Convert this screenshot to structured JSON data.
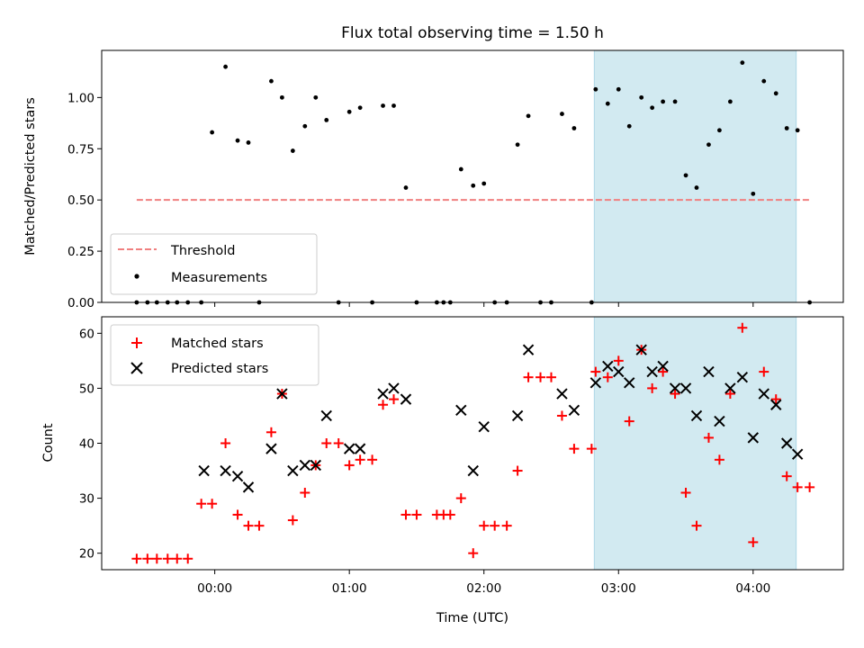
{
  "chart_data": [
    {
      "type": "scatter",
      "panel": "top",
      "title": "Flux total observing time = 1.50 h",
      "ylabel": "Matched/Predicted stars",
      "ylim": [
        0,
        1.23
      ],
      "xlim_hours": [
        -0.84,
        4.67
      ],
      "yticks": [
        0,
        0.25,
        0.5,
        0.75,
        1.0
      ],
      "ytick_labels": [
        "0.00",
        "0.25",
        "0.50",
        "0.75",
        "1.00"
      ],
      "shaded_span_hours": [
        2.82,
        4.32
      ],
      "shade_color": "#add8e6",
      "threshold": {
        "name": "Threshold",
        "y": 0.5,
        "x_range_hours": [
          -0.58,
          4.42
        ],
        "color": "#f08080"
      },
      "legend": {
        "placement": "lower-left",
        "entries": [
          "Threshold",
          "Measurements"
        ]
      },
      "series": [
        {
          "name": "Measurements",
          "marker": "dot",
          "color": "#000000",
          "x_hours": [
            -0.58,
            -0.5,
            -0.43,
            -0.35,
            -0.28,
            -0.2,
            -0.1,
            -0.02,
            0.08,
            0.17,
            0.25,
            0.33,
            0.42,
            0.5,
            0.58,
            0.67,
            0.75,
            0.83,
            0.92,
            1.0,
            1.08,
            1.17,
            1.25,
            1.33,
            1.42,
            1.5,
            1.65,
            1.7,
            1.75,
            1.83,
            1.92,
            2.0,
            2.08,
            2.17,
            2.25,
            2.33,
            2.42,
            2.5,
            2.58,
            2.67,
            2.8,
            2.83,
            2.92,
            3.0,
            3.08,
            3.17,
            3.25,
            3.33,
            3.42,
            3.5,
            3.58,
            3.67,
            3.75,
            3.83,
            3.92,
            4.0,
            4.08,
            4.17,
            4.25,
            4.33,
            4.42
          ],
          "y": [
            0,
            0,
            0,
            0,
            0,
            0,
            0,
            0.83,
            1.15,
            0.79,
            0.78,
            0,
            1.08,
            1.0,
            0.74,
            0.86,
            1.0,
            0.89,
            0,
            0.93,
            0.95,
            0,
            0.96,
            0.96,
            0.56,
            0,
            0,
            0,
            0,
            0.65,
            0.57,
            0.58,
            0,
            0,
            0.77,
            0.91,
            0,
            0,
            0.92,
            0.85,
            0,
            1.04,
            0.97,
            1.04,
            0.86,
            1.0,
            0.95,
            0.98,
            0.98,
            0.62,
            0.56,
            0.77,
            0.84,
            0.98,
            1.17,
            0.53,
            1.08,
            1.02,
            0.85,
            0.84,
            0
          ]
        }
      ]
    },
    {
      "type": "scatter",
      "panel": "bottom",
      "xlabel": "Time (UTC)",
      "ylabel": "Count",
      "ylim": [
        17,
        63
      ],
      "xlim_hours": [
        -0.84,
        4.67
      ],
      "yticks": [
        20,
        30,
        40,
        50,
        60
      ],
      "xticks_hours": [
        0,
        1,
        2,
        3,
        4
      ],
      "xtick_labels": [
        "00:00",
        "01:00",
        "02:00",
        "03:00",
        "04:00"
      ],
      "shaded_span_hours": [
        2.82,
        4.32
      ],
      "shade_color": "#add8e6",
      "legend": {
        "placement": "upper-left",
        "entries": [
          "Matched stars",
          "Predicted stars"
        ]
      },
      "series": [
        {
          "name": "Matched stars",
          "marker": "plus",
          "color": "#ff0000",
          "x_hours": [
            -0.58,
            -0.5,
            -0.43,
            -0.35,
            -0.28,
            -0.2,
            -0.1,
            -0.02,
            0.08,
            0.17,
            0.25,
            0.33,
            0.42,
            0.5,
            0.58,
            0.67,
            0.75,
            0.83,
            0.92,
            1.0,
            1.08,
            1.17,
            1.25,
            1.33,
            1.42,
            1.5,
            1.65,
            1.7,
            1.75,
            1.83,
            1.92,
            2.0,
            2.08,
            2.17,
            2.25,
            2.33,
            2.42,
            2.5,
            2.58,
            2.67,
            2.8,
            2.83,
            2.92,
            3.0,
            3.08,
            3.17,
            3.25,
            3.33,
            3.42,
            3.5,
            3.58,
            3.67,
            3.75,
            3.83,
            3.92,
            4.0,
            4.08,
            4.17,
            4.25,
            4.33,
            4.42
          ],
          "y": [
            19,
            19,
            19,
            19,
            19,
            19,
            29,
            29,
            40,
            27,
            25,
            25,
            42,
            49,
            26,
            31,
            36,
            40,
            40,
            36,
            37,
            37,
            47,
            48,
            27,
            27,
            27,
            27,
            27,
            30,
            20,
            25,
            25,
            25,
            35,
            52,
            52,
            52,
            45,
            39,
            39,
            53,
            52,
            55,
            44,
            57,
            50,
            53,
            49,
            31,
            25,
            41,
            37,
            49,
            61,
            22,
            53,
            48,
            34,
            32,
            32
          ]
        },
        {
          "name": "Predicted stars",
          "marker": "x",
          "color": "#000000",
          "x_hours": [
            -0.08,
            0.08,
            0.17,
            0.25,
            0.42,
            0.5,
            0.58,
            0.67,
            0.75,
            0.83,
            1.0,
            1.08,
            1.25,
            1.33,
            1.42,
            1.83,
            1.92,
            2.0,
            2.25,
            2.33,
            2.58,
            2.67,
            2.83,
            2.92,
            3.0,
            3.08,
            3.17,
            3.25,
            3.33,
            3.42,
            3.5,
            3.58,
            3.67,
            3.75,
            3.83,
            3.92,
            4.0,
            4.08,
            4.17,
            4.25,
            4.33
          ],
          "y": [
            35,
            35,
            34,
            32,
            39,
            49,
            35,
            36,
            36,
            45,
            39,
            39,
            49,
            50,
            48,
            46,
            35,
            43,
            45,
            57,
            49,
            46,
            51,
            54,
            53,
            51,
            57,
            53,
            54,
            50,
            50,
            45,
            53,
            44,
            50,
            52,
            41,
            49,
            47,
            40,
            38
          ]
        }
      ]
    }
  ]
}
